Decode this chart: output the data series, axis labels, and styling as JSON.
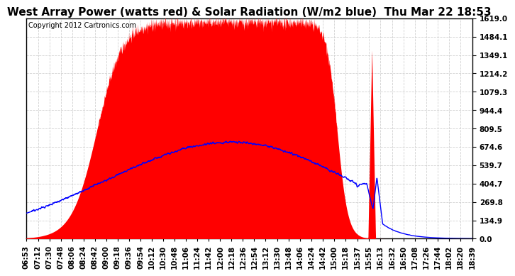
{
  "title": "West Array Power (watts red) & Solar Radiation (W/m2 blue)  Thu Mar 22 18:53",
  "copyright": "Copyright 2012 Cartronics.com",
  "background_color": "#ffffff",
  "plot_bg_color": "#ffffff",
  "yticks": [
    0.0,
    134.9,
    269.8,
    404.7,
    539.7,
    674.6,
    809.5,
    944.4,
    1079.3,
    1214.2,
    1349.1,
    1484.1,
    1619.0
  ],
  "ymax": 1619.0,
  "xtick_labels": [
    "06:53",
    "07:12",
    "07:30",
    "07:48",
    "08:06",
    "08:24",
    "08:42",
    "09:00",
    "09:18",
    "09:36",
    "09:54",
    "10:12",
    "10:30",
    "10:48",
    "11:06",
    "11:24",
    "11:42",
    "12:00",
    "12:18",
    "12:36",
    "12:54",
    "13:12",
    "13:30",
    "13:48",
    "14:06",
    "14:24",
    "14:42",
    "15:00",
    "15:18",
    "15:37",
    "15:55",
    "16:13",
    "16:32",
    "16:50",
    "17:08",
    "17:26",
    "17:44",
    "18:02",
    "18:20",
    "18:39"
  ],
  "red_color": "#ff0000",
  "blue_color": "#0000ff",
  "grid_color": "#cccccc",
  "title_fontsize": 11,
  "copyright_fontsize": 7,
  "tick_fontsize": 7.5
}
